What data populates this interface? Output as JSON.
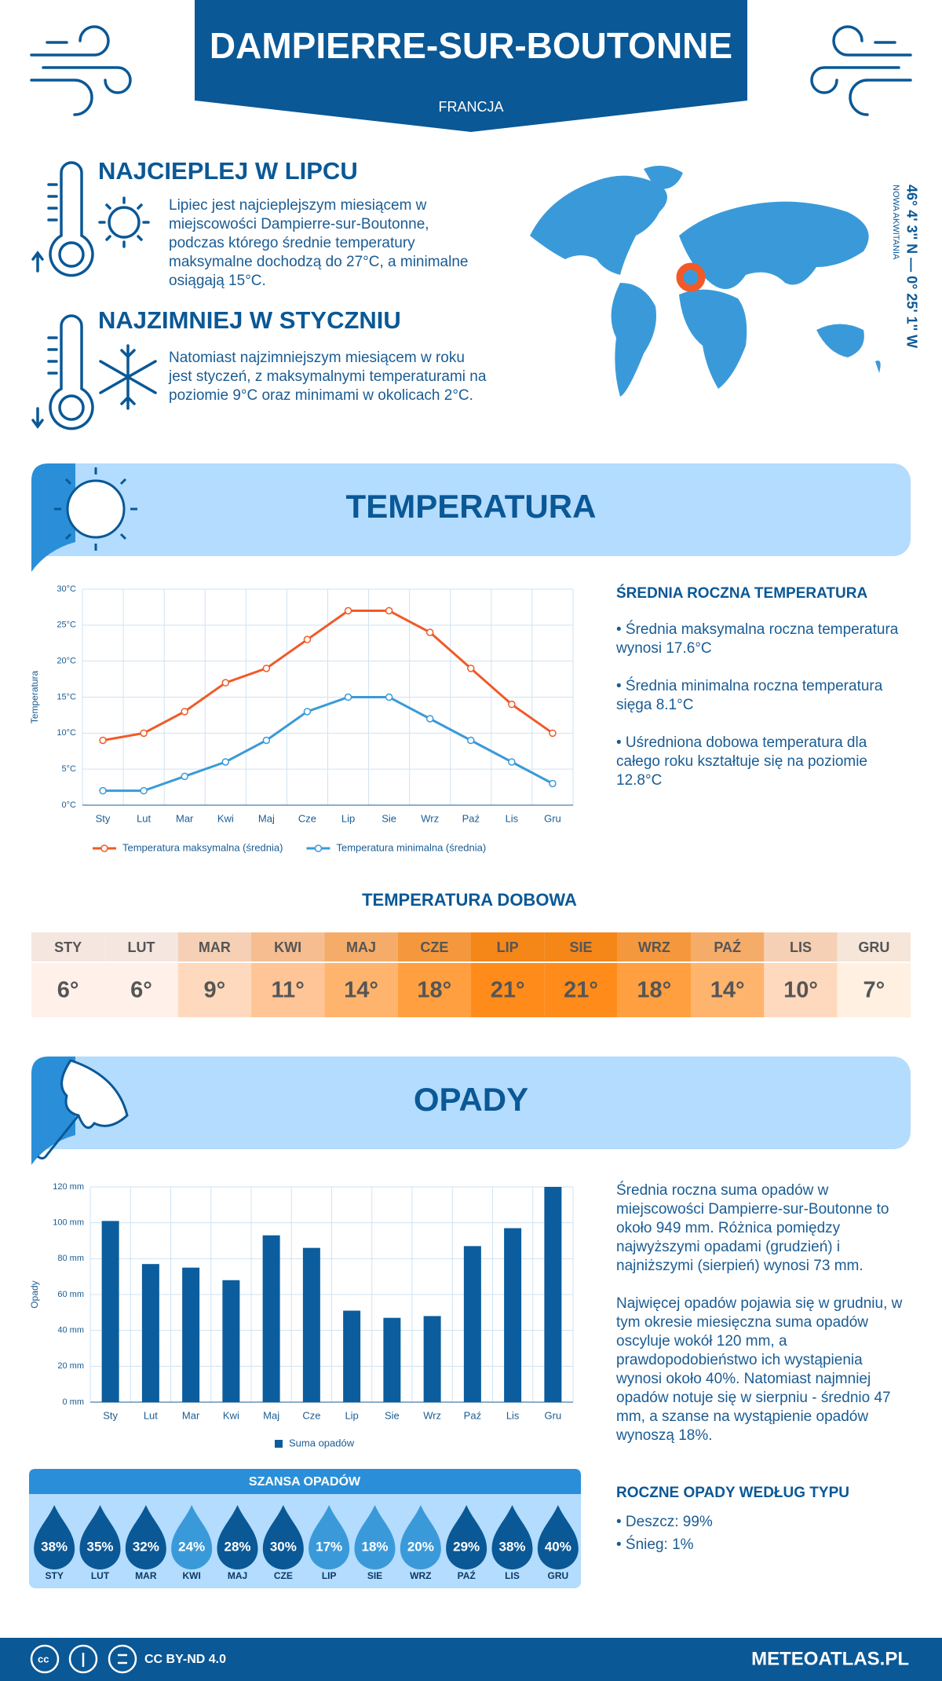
{
  "header": {
    "title": "DAMPIERRE-SUR-BOUTONNE",
    "subtitle": "FRANCJA"
  },
  "hottest": {
    "title": "NAJCIEPLEJ W LIPCU",
    "text": "Lipiec jest najcieplejszym miesiącem w miejscowości Dampierre-sur-Boutonne, podczas którego średnie temperatury maksymalne dochodzą do 27°C, a minimalne osiągają 15°C."
  },
  "coldest": {
    "title": "NAJZIMNIEJ W STYCZNIU",
    "text": "Natomiast najzimniejszym miesiącem w roku jest styczeń, z maksymalnymi temperaturami na poziomie 9°C oraz minimami w okolicach 2°C."
  },
  "location": {
    "coordinates": "46° 4' 3'' N — 0° 25' 1'' W",
    "region": "NOWA AKWITANIA"
  },
  "temperature_section": {
    "title": "TEMPERATURA",
    "stats_title": "ŚREDNIA ROCZNA TEMPERATURA",
    "stats": [
      "• Średnia maksymalna roczna temperatura wynosi 17.6°C",
      "• Średnia minimalna roczna temperatura sięga 8.1°C",
      "• Uśredniona dobowa temperatura dla całego roku kształtuje się na poziomie 12.8°C"
    ]
  },
  "chart_data": [
    {
      "type": "line",
      "y_label": "Temperatura",
      "categories": [
        "Sty",
        "Lut",
        "Mar",
        "Kwi",
        "Maj",
        "Cze",
        "Lip",
        "Sie",
        "Wrz",
        "Paź",
        "Lis",
        "Gru"
      ],
      "series": [
        {
          "name": "Temperatura maksymalna (średnia)",
          "color": "#f05a28",
          "values": [
            9,
            10,
            13,
            17,
            19,
            23,
            27,
            27,
            24,
            19,
            14,
            10
          ]
        },
        {
          "name": "Temperatura minimalna (średnia)",
          "color": "#3a9ad9",
          "values": [
            2,
            2,
            4,
            6,
            9,
            13,
            15,
            15,
            12,
            9,
            6,
            3
          ]
        }
      ],
      "ylim": [
        0,
        30
      ],
      "yticks": [
        {
          "value": 0,
          "label": "0°C"
        },
        {
          "value": 5,
          "label": "5°C"
        },
        {
          "value": 10,
          "label": "10°C"
        },
        {
          "value": 15,
          "label": "15°C"
        },
        {
          "value": 20,
          "label": "20°C"
        },
        {
          "value": 25,
          "label": "25°C"
        },
        {
          "value": 30,
          "label": "30°C"
        }
      ],
      "grid": true,
      "legend": "bottom"
    },
    {
      "type": "bar",
      "y_label": "Opady",
      "categories": [
        "Sty",
        "Lut",
        "Mar",
        "Kwi",
        "Maj",
        "Cze",
        "Lip",
        "Sie",
        "Wrz",
        "Paź",
        "Lis",
        "Gru"
      ],
      "series": [
        {
          "name": "Suma opadów",
          "color": "#0b5d9e",
          "values": [
            101,
            77,
            75,
            68,
            93,
            86,
            51,
            47,
            48,
            87,
            97,
            120
          ]
        }
      ],
      "ylim": [
        0,
        120
      ],
      "yticks": [
        {
          "value": 0,
          "label": "0 mm"
        },
        {
          "value": 20,
          "label": "20 mm"
        },
        {
          "value": 40,
          "label": "40 mm"
        },
        {
          "value": 60,
          "label": "60 mm"
        },
        {
          "value": 80,
          "label": "80 mm"
        },
        {
          "value": 100,
          "label": "100 mm"
        },
        {
          "value": 120,
          "label": "120 mm"
        }
      ],
      "grid": true,
      "legend": "bottom"
    }
  ],
  "daily_temperature": {
    "title": "TEMPERATURA DOBOWA",
    "months": [
      "STY",
      "LUT",
      "MAR",
      "KWI",
      "MAJ",
      "CZE",
      "LIP",
      "SIE",
      "WRZ",
      "PAŹ",
      "LIS",
      "GRU"
    ],
    "values": [
      "6°",
      "6°",
      "9°",
      "11°",
      "14°",
      "18°",
      "21°",
      "21°",
      "18°",
      "14°",
      "10°",
      "7°"
    ],
    "colors": [
      "#fff1ea",
      "#fff1ea",
      "#ffd9bd",
      "#ffc596",
      "#ffb46e",
      "#ff9f40",
      "#ff8c1a",
      "#ff8c1a",
      "#ff9f40",
      "#ffb46e",
      "#ffd9bd",
      "#fff0e2"
    ]
  },
  "precipitation_section": {
    "title": "OPADY",
    "paragraphs": [
      "Średnia roczna suma opadów w miejscowości Dampierre-sur-Boutonne to około 949 mm. Różnica pomiędzy najwyższymi opadami (grudzień) i najniższymi (sierpień) wynosi 73 mm.",
      "Najwięcej opadów pojawia się w grudniu, w tym okresie miesięczna suma opadów oscyluje wokół 120 mm, a prawdopodobieństwo ich wystąpienia wynosi około 40%. Natomiast najmniej opadów notuje się w sierpniu - średnio 47 mm, a szanse na wystąpienie opadów wynoszą 18%."
    ],
    "type_title": "ROCZNE OPADY WEDŁUG TYPU",
    "types": [
      "• Deszcz: 99%",
      "• Śnieg: 1%"
    ]
  },
  "precipitation_chance": {
    "title": "SZANSA OPADÓW",
    "months": [
      "STY",
      "LUT",
      "MAR",
      "KWI",
      "MAJ",
      "CZE",
      "LIP",
      "SIE",
      "WRZ",
      "PAŹ",
      "LIS",
      "GRU"
    ],
    "values": [
      "38%",
      "35%",
      "32%",
      "24%",
      "28%",
      "30%",
      "17%",
      "18%",
      "20%",
      "29%",
      "38%",
      "40%"
    ],
    "colors": [
      "#0a5896",
      "#0a5896",
      "#0a5896",
      "#3a9ad9",
      "#0a5896",
      "#0a5896",
      "#3a9ad9",
      "#3a9ad9",
      "#3a9ad9",
      "#0a5896",
      "#0a5896",
      "#0a5896"
    ]
  },
  "footer": {
    "license": "CC BY-ND 4.0",
    "site": "METEOATLAS.PL"
  }
}
